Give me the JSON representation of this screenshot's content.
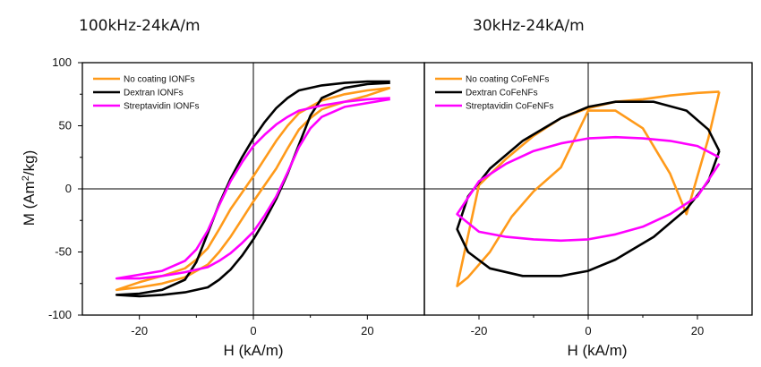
{
  "chart_data": [
    {
      "type": "line",
      "title": "100kHz-24kA/m",
      "xlabel": "H (kA/m)",
      "ylabel": "M (Am²/kg)",
      "xlim": [
        -30,
        30
      ],
      "ylim": [
        -100,
        100
      ],
      "x_ticks": [
        "-20",
        "0",
        "20"
      ],
      "y_ticks": [
        "100",
        "50",
        "0",
        "-50",
        "-100"
      ],
      "legend_position": "top-left",
      "series": [
        {
          "name": "No coating IONFs",
          "color": "#ff9a1a",
          "x": [
            24,
            20,
            16,
            12,
            8,
            6,
            4,
            2,
            0,
            -2,
            -4,
            -6,
            -8,
            -10,
            -12,
            -16,
            -20,
            -24,
            -20,
            -16,
            -12,
            -8,
            -6,
            -4,
            -2,
            0,
            2,
            4,
            6,
            8,
            10,
            12,
            16,
            20,
            24
          ],
          "y": [
            80,
            78,
            75,
            70,
            60,
            50,
            38,
            24,
            10,
            -3,
            -16,
            -32,
            -47,
            -56,
            -63,
            -69,
            -74,
            -80,
            -78,
            -75,
            -70,
            -60,
            -50,
            -38,
            -24,
            -10,
            3,
            16,
            32,
            47,
            56,
            63,
            69,
            74,
            80
          ]
        },
        {
          "name": "Dextran IONFs",
          "color": "#000000",
          "x": [
            24,
            20,
            16,
            12,
            8,
            6,
            4,
            2,
            0,
            -2,
            -4,
            -6,
            -8,
            -10,
            -12,
            -16,
            -20,
            -24,
            -20,
            -16,
            -12,
            -8,
            -6,
            -4,
            -2,
            0,
            2,
            4,
            6,
            8,
            10,
            12,
            16,
            20,
            24
          ],
          "y": [
            85,
            85,
            84,
            82,
            78,
            72,
            64,
            53,
            40,
            25,
            8,
            -12,
            -35,
            -58,
            -72,
            -80,
            -83,
            -84,
            -85,
            -84,
            -82,
            -78,
            -72,
            -64,
            -53,
            -40,
            -25,
            -8,
            12,
            35,
            58,
            72,
            80,
            83,
            84
          ]
        },
        {
          "name": "Streptavidin IONFs",
          "color": "#ff00ff",
          "x": [
            24,
            20,
            16,
            12,
            8,
            6,
            4,
            2,
            0,
            -2,
            -4,
            -6,
            -8,
            -10,
            -12,
            -16,
            -20,
            -24,
            -20,
            -16,
            -12,
            -8,
            -6,
            -4,
            -2,
            0,
            2,
            4,
            6,
            8,
            10,
            12,
            16,
            20,
            24
          ],
          "y": [
            72,
            71,
            69,
            66,
            62,
            57,
            51,
            43,
            34,
            21,
            6,
            -13,
            -33,
            -48,
            -57,
            -65,
            -68,
            -71,
            -71,
            -69,
            -66,
            -62,
            -57,
            -51,
            -43,
            -34,
            -21,
            -6,
            13,
            33,
            48,
            57,
            65,
            68,
            71
          ]
        }
      ]
    },
    {
      "type": "line",
      "title": "30kHz-24kA/m",
      "xlabel": "H (kA/m)",
      "ylabel": "",
      "xlim": [
        -30,
        30
      ],
      "ylim": [
        -100,
        100
      ],
      "x_ticks": [
        "-20",
        "0",
        "20"
      ],
      "legend_position": "top-left",
      "series": [
        {
          "name": "No coating CoFeNFs",
          "color": "#ff9a1a",
          "x": [
            24,
            20,
            15,
            10,
            5,
            0,
            -5,
            -10,
            -15,
            -20,
            -24,
            -22,
            -18,
            -14,
            -10,
            -5,
            0,
            5,
            10,
            15,
            18,
            22,
            24
          ],
          "y": [
            77,
            76,
            74,
            71,
            69,
            64,
            56,
            42,
            24,
            3,
            -77,
            -70,
            -50,
            -22,
            -2,
            17,
            62,
            62,
            48,
            12,
            -20,
            40,
            77
          ]
        },
        {
          "name": "Dextran CoFeNFs",
          "color": "#000000",
          "x": [
            24,
            22,
            18,
            12,
            5,
            0,
            -5,
            -12,
            -18,
            -22,
            -24,
            -22,
            -18,
            -12,
            -5,
            0,
            5,
            12,
            18,
            22,
            24
          ],
          "y": [
            30,
            47,
            62,
            69,
            69,
            65,
            56,
            38,
            16,
            -6,
            -32,
            -50,
            -63,
            -69,
            -69,
            -65,
            -56,
            -38,
            -16,
            6,
            30
          ]
        },
        {
          "name": "Streptavidin CoFeNFs",
          "color": "#ff00ff",
          "x": [
            24,
            20,
            15,
            10,
            5,
            0,
            -5,
            -10,
            -15,
            -20,
            -24,
            -20,
            -15,
            -10,
            -5,
            0,
            5,
            10,
            15,
            20,
            24
          ],
          "y": [
            25,
            34,
            38,
            40,
            41,
            40,
            36,
            30,
            20,
            6,
            -20,
            -34,
            -38,
            -40,
            -41,
            -40,
            -36,
            -30,
            -20,
            -6,
            20
          ]
        }
      ]
    }
  ]
}
